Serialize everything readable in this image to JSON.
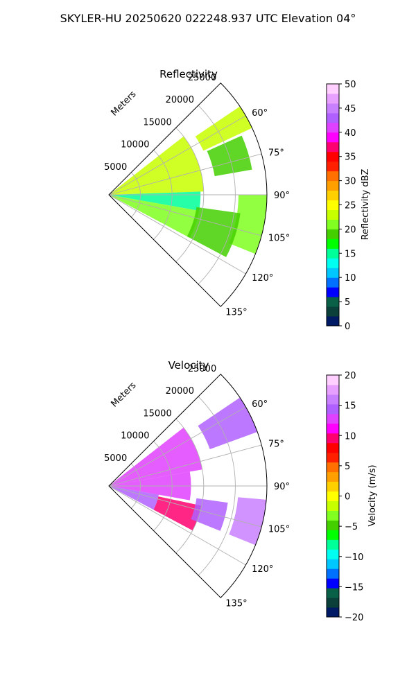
{
  "figure": {
    "title": "SKYLER-HU  20250620  022248.937 UTC Elevation 04°"
  },
  "chart_data": [
    {
      "type": "heatmap",
      "projection": "polar-sector",
      "title": "Reflectivity",
      "radial_label": "Meters",
      "radial_ticks": [
        5000,
        10000,
        15000,
        20000,
        25000
      ],
      "radial_tick_labels": [
        "5000",
        "10000",
        "15000",
        "20000",
        "25000"
      ],
      "rlim": [
        0,
        25000
      ],
      "azimuth_range_deg": [
        45,
        135
      ],
      "azimuth_ticks": [
        60,
        75,
        90,
        105,
        120,
        135
      ],
      "azimuth_tick_labels": [
        "60°",
        "75°",
        "90°",
        "105°",
        "120°",
        "135°"
      ],
      "grid": true,
      "colorbar": {
        "label": "Reflectivity dBZ",
        "vmin": 0,
        "vmax": 50,
        "ticks": [
          0,
          5,
          10,
          15,
          20,
          25,
          30,
          35,
          40,
          45,
          50
        ],
        "tick_labels": [
          "0",
          "5",
          "10",
          "15",
          "20",
          "25",
          "30",
          "35",
          "40",
          "45",
          "50"
        ],
        "colors": [
          "#001a66",
          "#0a3f3a",
          "#0a6046",
          "#0000ff",
          "#0070ff",
          "#00c8ff",
          "#00fff0",
          "#00ff99",
          "#00ff00",
          "#44d000",
          "#80ff20",
          "#c8ff00",
          "#ffff00",
          "#ffd000",
          "#ffa000",
          "#ff7000",
          "#ff2000",
          "#ff0000",
          "#ff0070",
          "#ff00ff",
          "#e040ff",
          "#b060ff",
          "#c880ff",
          "#e8a0ff",
          "#ffd0ff"
        ]
      },
      "cells": [
        {
          "az": [
            52,
            88
          ],
          "r": [
            0,
            15000
          ],
          "value": 22
        },
        {
          "az": [
            88,
            100
          ],
          "r": [
            0,
            14500
          ],
          "value": 14
        },
        {
          "az": [
            100,
            118
          ],
          "r": [
            0,
            14500
          ],
          "value": 21
        },
        {
          "az": [
            56,
            65
          ],
          "r": [
            16500,
            25000
          ],
          "value": 22
        },
        {
          "az": [
            66,
            80
          ],
          "r": [
            17000,
            23000
          ],
          "value": 18
        },
        {
          "az": [
            90,
            112
          ],
          "r": [
            20500,
            25000
          ],
          "value": 21
        },
        {
          "az": [
            98,
            118
          ],
          "r": [
            14000,
            21000
          ],
          "value": 18
        }
      ]
    },
    {
      "type": "heatmap",
      "projection": "polar-sector",
      "title": "Velocity",
      "radial_label": "Meters",
      "radial_ticks": [
        5000,
        10000,
        15000,
        20000,
        25000
      ],
      "radial_tick_labels": [
        "5000",
        "10000",
        "15000",
        "20000",
        "25000"
      ],
      "rlim": [
        0,
        25000
      ],
      "azimuth_range_deg": [
        45,
        135
      ],
      "azimuth_ticks": [
        60,
        75,
        90,
        105,
        120,
        135
      ],
      "azimuth_tick_labels": [
        "60°",
        "75°",
        "90°",
        "105°",
        "120°",
        "135°"
      ],
      "grid": true,
      "colorbar": {
        "label": "Velocity (m/s)",
        "vmin": -20,
        "vmax": 20,
        "ticks": [
          -20,
          -15,
          -10,
          -5,
          0,
          5,
          10,
          15,
          20
        ],
        "tick_labels": [
          "−20",
          "−15",
          "−10",
          "−5",
          "0",
          "5",
          "10",
          "15",
          "20"
        ],
        "colors": [
          "#001a66",
          "#0a3f3a",
          "#0a6046",
          "#0000ff",
          "#0070ff",
          "#00c8ff",
          "#00fff0",
          "#00ff99",
          "#00ff00",
          "#44d000",
          "#80ff20",
          "#c8ff00",
          "#ffff00",
          "#ffd000",
          "#ffa000",
          "#ff7000",
          "#ff2000",
          "#ff0000",
          "#ff0070",
          "#ff00ff",
          "#e040ff",
          "#b060ff",
          "#c880ff",
          "#e8a0ff",
          "#ffd0ff"
        ]
      },
      "cells": [
        {
          "az": [
            52,
            80
          ],
          "r": [
            0,
            15000
          ],
          "value": 12
        },
        {
          "az": [
            80,
            100
          ],
          "r": [
            0,
            13000
          ],
          "value": 13
        },
        {
          "az": [
            100,
            118
          ],
          "r": [
            0,
            8000
          ],
          "value": 14
        },
        {
          "az": [
            102,
            118
          ],
          "r": [
            8000,
            15000
          ],
          "value": 10
        },
        {
          "az": [
            56,
            70
          ],
          "r": [
            17000,
            25000
          ],
          "value": 15
        },
        {
          "az": [
            95,
            112
          ],
          "r": [
            20500,
            25000
          ],
          "value": 16
        },
        {
          "az": [
            98,
            112
          ],
          "r": [
            14000,
            19000
          ],
          "value": 14
        }
      ]
    }
  ]
}
